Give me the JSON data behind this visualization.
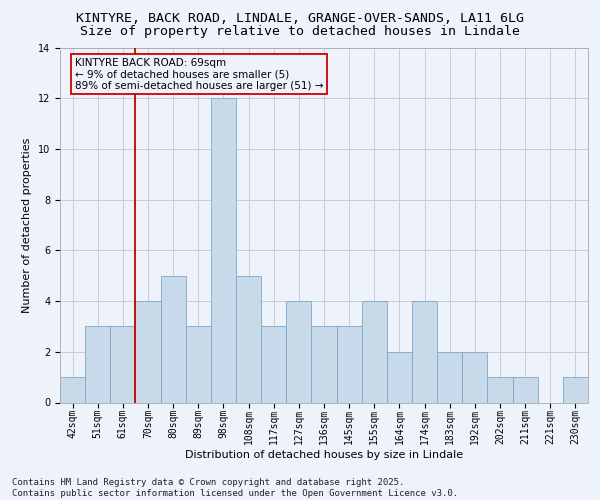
{
  "title": "KINTYRE, BACK ROAD, LINDALE, GRANGE-OVER-SANDS, LA11 6LG",
  "subtitle": "Size of property relative to detached houses in Lindale",
  "xlabel": "Distribution of detached houses by size in Lindale",
  "ylabel": "Number of detached properties",
  "footer_line1": "Contains HM Land Registry data © Crown copyright and database right 2025.",
  "footer_line2": "Contains public sector information licensed under the Open Government Licence v3.0.",
  "bin_labels": [
    "42sqm",
    "51sqm",
    "61sqm",
    "70sqm",
    "80sqm",
    "89sqm",
    "98sqm",
    "108sqm",
    "117sqm",
    "127sqm",
    "136sqm",
    "145sqm",
    "155sqm",
    "164sqm",
    "174sqm",
    "183sqm",
    "192sqm",
    "202sqm",
    "211sqm",
    "221sqm",
    "230sqm"
  ],
  "bar_values": [
    1,
    3,
    3,
    4,
    5,
    3,
    12,
    5,
    3,
    4,
    3,
    3,
    4,
    2,
    4,
    2,
    2,
    1,
    1,
    0,
    1
  ],
  "bar_color": "#c8d9ea",
  "bar_edgecolor": "#7aa8cc",
  "bar_linewidth": 0.6,
  "vline_x": 2.5,
  "vline_color": "#cc0000",
  "annotation_text": "KINTYRE BACK ROAD: 69sqm\n← 9% of detached houses are smaller (5)\n89% of semi-detached houses are larger (51) →",
  "annotation_box_edgecolor": "#cc0000",
  "ylim": [
    0,
    14
  ],
  "yticks": [
    0,
    2,
    4,
    6,
    8,
    10,
    12,
    14
  ],
  "grid_color": "#cccccc",
  "bg_color": "#eef2fb",
  "title_fontsize": 9.5,
  "subtitle_fontsize": 9.5,
  "axis_label_fontsize": 8,
  "tick_fontsize": 7,
  "footer_fontsize": 6.5,
  "annotation_fontsize": 7.5
}
